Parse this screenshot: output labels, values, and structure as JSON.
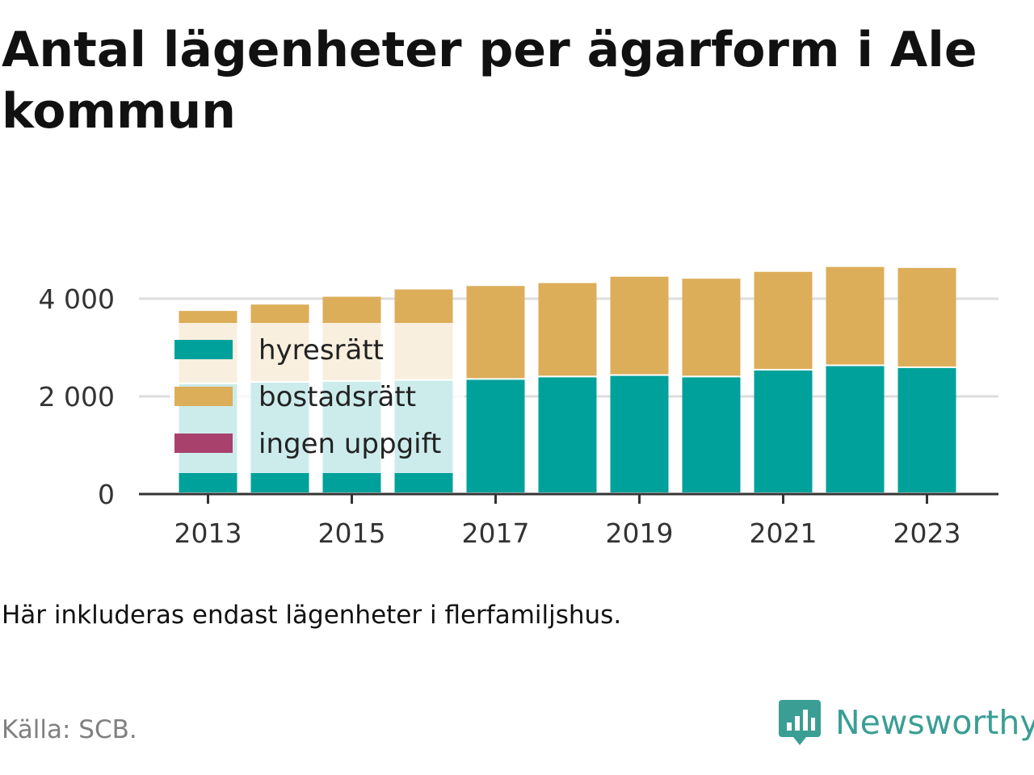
{
  "title": "Antal lägenheter per ägarform i Ale kommun",
  "note": "Här inkluderas endast lägenheter i flerfamiljshus.",
  "source": "Källa: SCB.",
  "brand": {
    "name": "Newsworthy",
    "color": "#3a9e95",
    "icon": "newsworthy-logo-icon"
  },
  "colors": {
    "grid": "#dddddd",
    "axis": "#333333"
  },
  "chart_data": {
    "type": "bar",
    "stacked": true,
    "title": "Antal lägenheter per ägarform i Ale kommun",
    "xlabel": "",
    "ylabel": "",
    "categories": [
      "2013",
      "2014",
      "2015",
      "2016",
      "2017",
      "2018",
      "2019",
      "2020",
      "2021",
      "2022",
      "2023"
    ],
    "x_tick_labels": [
      "2013",
      "2015",
      "2017",
      "2019",
      "2021",
      "2023"
    ],
    "y_ticks": [
      0,
      2000,
      4000
    ],
    "y_tick_labels": [
      "0",
      "2 000",
      "4 000"
    ],
    "ylim": [
      0,
      4700
    ],
    "grid": true,
    "legend_position": "top-left (inside plot)",
    "series": [
      {
        "name": "hyresrätt",
        "color": "#00a19a",
        "values": [
          2250,
          2280,
          2300,
          2320,
          2340,
          2390,
          2420,
          2390,
          2530,
          2620,
          2580
        ]
      },
      {
        "name": "bostadsrätt",
        "color": "#dcae5a",
        "values": [
          1500,
          1600,
          1740,
          1870,
          1920,
          1930,
          2030,
          2020,
          2020,
          2030,
          2050
        ]
      },
      {
        "name": "ingen uppgift",
        "color": "#a8416b",
        "values": [
          0,
          0,
          0,
          0,
          0,
          0,
          0,
          0,
          0,
          0,
          0
        ]
      }
    ]
  }
}
